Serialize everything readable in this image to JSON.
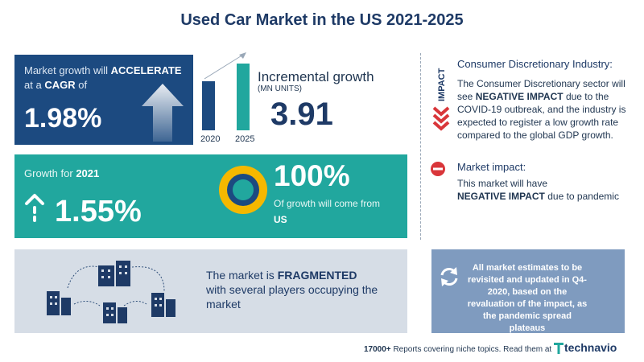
{
  "header": {
    "title": "Used Car Market in the US  2021-2025"
  },
  "cagr": {
    "prefix": "Market growth will",
    "keyword": "ACCELERATE",
    "at_a": "at a",
    "cagr_word": "CAGR",
    "of_word": "of",
    "value": "1.98%"
  },
  "incremental": {
    "title": "Incremental growth",
    "unit": "(MN UNITS)",
    "value": "3.91",
    "year_start": "2020",
    "year_end": "2025"
  },
  "growth": {
    "label": "Growth for",
    "year": "2021",
    "value": "1.55%",
    "pct_value": "100%",
    "pct_text": "Of growth will come from",
    "region": "US"
  },
  "fragmented": {
    "prefix": "The market is",
    "keyword": "FRAGMENTED",
    "line2": "with several players occupying the",
    "line3": "market"
  },
  "industry": {
    "impact_label": "IMPACT",
    "title": "Consumer Discretionary Industry:",
    "text_before": "The Consumer Discretionary sector will see",
    "keyword": "NEGATIVE IMPACT",
    "text_after": "due to the COVID-19 outbreak, and the industry is expected to register a low growth rate compared to the global GDP growth."
  },
  "market_impact": {
    "title": "Market impact:",
    "line1": "This market will have",
    "keyword": "NEGATIVE IMPACT",
    "line2_rest": "due to pandemic"
  },
  "estimates": {
    "text": "All market estimates to be revisited and updated in Q4-2020, based on the revaluation of the impact, as the pandemic spread plateaus"
  },
  "footer": {
    "count": "17000+",
    "text": "Reports covering niche topics. Read them at",
    "logo": "technavio"
  },
  "icons": {
    "cagr": "up-arrow-icon",
    "growth": "up-arrow-dashed-icon",
    "donut": "donut-icon",
    "buildings": "buildings-network-icon",
    "chevrons": "chevron-down-icon",
    "minus": "minus-circle-icon",
    "refresh": "refresh-icon"
  },
  "colors": {
    "navy": "#1c4a80",
    "teal": "#21a79e",
    "gray": "#d6dde6",
    "steel": "#7f9bbf",
    "red": "#d9363a",
    "yellow": "#f5b800"
  },
  "chart_data": {
    "type": "bar",
    "categories": [
      "2020",
      "2025"
    ],
    "values": [
      null,
      null
    ],
    "title": "",
    "xlabel": "",
    "ylabel": ""
  }
}
